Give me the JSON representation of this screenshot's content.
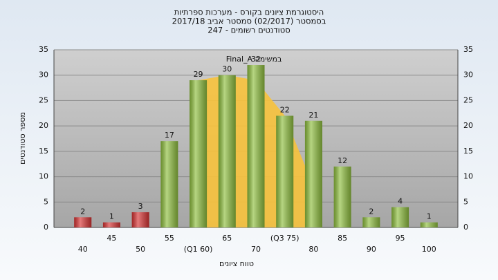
{
  "chart_data": {
    "type": "bar",
    "title_lines": [
      "היסטוגרמת ציונים בקורס - מערכות ספרתיות",
      "בסמסטר  (02/2017)  סמסטר אביב 2017/18",
      "סטודנטים רשומים - 247"
    ],
    "x_label": "טווח ציונים",
    "y_label": "מספר סטודנטים",
    "annotation": "Final_A במשימה",
    "categories": [
      "40",
      "45",
      "50",
      "55",
      "(Q1 60)",
      "65",
      "70",
      "(Q3 75)",
      "80",
      "85",
      "90",
      "95",
      "100"
    ],
    "values": [
      2,
      1,
      3,
      17,
      29,
      30,
      32,
      22,
      21,
      12,
      2,
      4,
      1
    ],
    "colors": [
      "#d83434",
      "#d83434",
      "#d83434",
      "#8fbf3f",
      "#8fbf3f",
      "#8fbf3f",
      "#8fbf3f",
      "#8fbf3f",
      "#8fbf3f",
      "#8fbf3f",
      "#8fbf3f",
      "#8fbf3f",
      "#8fbf3f"
    ],
    "area": {
      "color": "#f7c23c",
      "values": [
        null,
        null,
        null,
        null,
        29,
        30,
        29,
        22,
        8,
        null,
        null,
        null,
        null
      ]
    },
    "ylim": [
      0,
      35
    ],
    "yticks": [
      0,
      5,
      10,
      15,
      20,
      25,
      30,
      35
    ],
    "grid": true
  }
}
